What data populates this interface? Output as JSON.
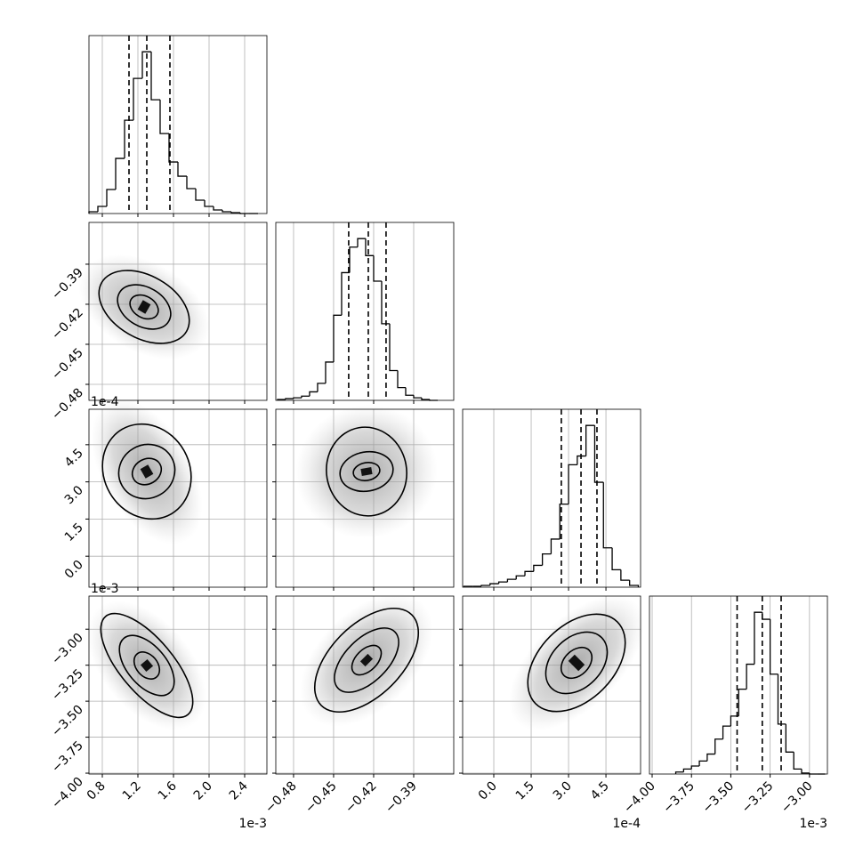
{
  "chart_data": {
    "type": "corner",
    "variables": [
      {
        "xlim": [
          0.65,
          2.65
        ],
        "xticks": [
          {
            "value": 0.8,
            "label": "0.8"
          },
          1.2,
          1.6,
          {
            "value": 2.0,
            "label": "2.0"
          },
          2.4
        ],
        "offset": "1e-3",
        "bins": [
          0.65,
          0.75,
          0.85,
          0.95,
          1.05,
          1.15,
          1.25,
          1.35,
          1.45,
          1.55,
          1.65,
          1.75,
          1.85,
          1.95,
          2.05,
          2.15,
          2.25,
          2.35,
          2.45,
          2.55
        ],
        "counts": [
          2,
          8,
          27,
          62,
          105,
          152,
          182,
          128,
          90,
          58,
          42,
          28,
          15,
          8,
          4,
          2,
          1,
          0,
          0
        ],
        "quantiles": [
          1.1,
          1.3,
          1.56
        ]
      },
      {
        "xlim": [
          -0.4933,
          -0.36
        ],
        "xticks": [
          {
            "value": -0.48,
            "label": "−0.48"
          },
          {
            "value": -0.45,
            "label": "−0.45"
          },
          {
            "value": -0.42,
            "label": "−0.42"
          },
          {
            "value": -0.39,
            "label": "−0.39"
          }
        ],
        "ylim": [
          -0.492,
          -0.3587
        ],
        "yticks": [
          {
            "value": -0.48,
            "label": "−0.48"
          },
          {
            "value": -0.45,
            "label": "−0.45"
          },
          {
            "value": -0.42,
            "label": "−0.42"
          },
          {
            "value": -0.39,
            "label": "−0.39"
          }
        ],
        "bins": [
          -0.492,
          -0.486,
          -0.48,
          -0.474,
          -0.468,
          -0.462,
          -0.456,
          -0.45,
          -0.444,
          -0.438,
          -0.432,
          -0.426,
          -0.42,
          -0.414,
          -0.408,
          -0.402,
          -0.396,
          -0.39,
          -0.384,
          -0.378,
          -0.372
        ],
        "counts": [
          1,
          2,
          3,
          5,
          10,
          20,
          45,
          100,
          150,
          180,
          190,
          170,
          140,
          90,
          35,
          15,
          6,
          3,
          1,
          0
        ],
        "quantiles": [
          -0.4387,
          -0.424,
          -0.4107
        ]
      },
      {
        "xlim": [
          -1.25,
          5.89
        ],
        "xticks": [
          {
            "value": 0.0,
            "label": "0.0"
          },
          1.5,
          {
            "value": 3.0,
            "label": "3.0"
          },
          4.5
        ],
        "ylim": [
          -1.25,
          5.93
        ],
        "yticks": [
          {
            "value": 0.0,
            "label": "0.0"
          },
          1.5,
          {
            "value": 3.0,
            "label": "3.0"
          },
          4.5
        ],
        "offset": "1e-4",
        "bins": [
          -1.2,
          -0.85,
          -0.5,
          -0.15,
          0.2,
          0.55,
          0.9,
          1.25,
          1.6,
          1.95,
          2.3,
          2.65,
          3.0,
          3.35,
          3.7,
          4.05,
          4.4,
          4.75,
          5.1,
          5.45,
          5.8
        ],
        "counts": [
          1,
          1,
          2,
          4,
          6,
          9,
          13,
          18,
          25,
          38,
          55,
          95,
          140,
          150,
          185,
          120,
          45,
          20,
          8,
          2
        ],
        "quantiles": [
          2.71,
          3.5,
          4.14
        ]
      },
      {
        "xlim": [
          -4.017,
          -2.886
        ],
        "xticks": [
          {
            "value": -4.0,
            "label": "−4.00"
          },
          {
            "value": -3.75,
            "label": "−3.75"
          },
          {
            "value": -3.5,
            "label": "−3.50"
          },
          {
            "value": -3.25,
            "label": "−3.25"
          },
          {
            "value": -3.0,
            "label": "−3.00"
          }
        ],
        "ylim": [
          -4.006,
          -2.77
        ],
        "yticks": [
          {
            "value": -4.0,
            "label": "−4.00"
          },
          {
            "value": -3.75,
            "label": "−3.75"
          },
          {
            "value": -3.5,
            "label": "−3.50"
          },
          {
            "value": -3.25,
            "label": "−3.25"
          },
          {
            "value": -3.0,
            "label": "−3.00"
          }
        ],
        "offset": "1e-3",
        "bins": [
          -3.85,
          -3.8,
          -3.75,
          -3.7,
          -3.65,
          -3.6,
          -3.55,
          -3.5,
          -3.45,
          -3.4,
          -3.35,
          -3.3,
          -3.25,
          -3.2,
          -3.15,
          -3.1,
          -3.05,
          -3.0,
          -2.95,
          -2.9
        ],
        "counts": [
          2,
          5,
          8,
          13,
          20,
          35,
          48,
          58,
          85,
          110,
          162,
          155,
          100,
          50,
          22,
          5,
          1,
          0,
          0
        ],
        "quantiles": [
          -3.46,
          -3.3,
          -3.18
        ]
      }
    ]
  }
}
